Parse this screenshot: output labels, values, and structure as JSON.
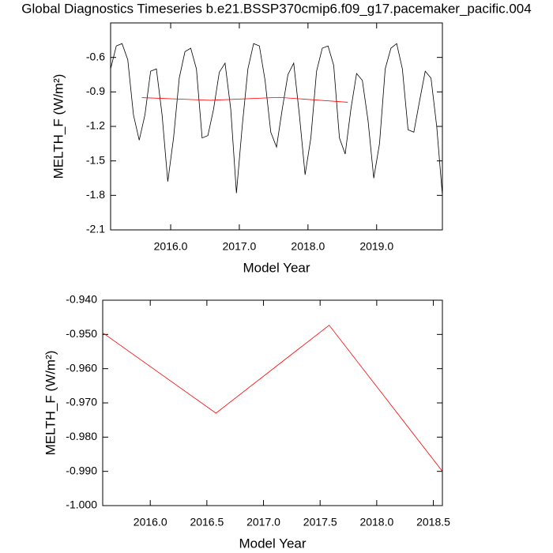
{
  "chart_data": [
    {
      "type": "line",
      "title": "Global Diagnostics Timeseries b.e21.BSSP370cmip6.f09_g17.pacemaker_pacific.004",
      "xlabel": "Model Year",
      "ylabel": "MELTH_F (W/m²)",
      "xlim": [
        2015.125,
        2019.958
      ],
      "ylim": [
        -2.1,
        -0.3
      ],
      "xticks": [
        {
          "value": 2016.0,
          "label": "2016.0"
        },
        {
          "value": 2017.0,
          "label": "2017.0"
        },
        {
          "value": 2018.0,
          "label": "2018.0"
        },
        {
          "value": 2019.0,
          "label": "2019.0"
        }
      ],
      "yticks": [
        -2.1,
        -1.8,
        -1.5,
        -1.2,
        -0.9,
        -0.6
      ],
      "series": [
        {
          "color": "#000000",
          "x": [
            2015.125,
            2015.208,
            2015.292,
            2015.375,
            2015.458,
            2015.542,
            2015.625,
            2015.708,
            2015.792,
            2015.875,
            2015.958,
            2016.042,
            2016.125,
            2016.208,
            2016.292,
            2016.375,
            2016.458,
            2016.542,
            2016.625,
            2016.708,
            2016.792,
            2016.875,
            2016.958,
            2017.042,
            2017.125,
            2017.208,
            2017.292,
            2017.375,
            2017.458,
            2017.542,
            2017.625,
            2017.708,
            2017.792,
            2017.875,
            2017.958,
            2018.042,
            2018.125,
            2018.208,
            2018.292,
            2018.375,
            2018.458,
            2018.542,
            2018.625,
            2018.708,
            2018.792,
            2018.875,
            2018.958,
            2019.042,
            2019.125,
            2019.208,
            2019.292,
            2019.375,
            2019.458,
            2019.542,
            2019.625,
            2019.708,
            2019.792,
            2019.875,
            2019.958
          ],
          "values": [
            -0.7,
            -0.5,
            -0.48,
            -0.62,
            -1.1,
            -1.32,
            -1.1,
            -0.72,
            -0.7,
            -1.1,
            -1.68,
            -1.3,
            -0.78,
            -0.55,
            -0.52,
            -0.7,
            -1.3,
            -1.28,
            -1.05,
            -0.73,
            -0.65,
            -1.05,
            -1.78,
            -1.2,
            -0.7,
            -0.48,
            -0.5,
            -0.8,
            -1.25,
            -1.38,
            -1.05,
            -0.75,
            -0.65,
            -1.1,
            -1.62,
            -1.3,
            -0.72,
            -0.52,
            -0.5,
            -0.67,
            -1.3,
            -1.44,
            -1.05,
            -0.74,
            -0.8,
            -1.15,
            -1.65,
            -1.35,
            -0.7,
            -0.52,
            -0.48,
            -0.7,
            -1.23,
            -1.25,
            -0.98,
            -0.72,
            -0.78,
            -1.2,
            -1.8
          ]
        },
        {
          "color": "#ff0000",
          "x": [
            2015.58,
            2016.58,
            2017.58,
            2018.58
          ],
          "values": [
            -0.9495,
            -0.973,
            -0.9473,
            -0.99
          ]
        }
      ]
    },
    {
      "type": "line",
      "xlabel": "Model Year",
      "ylabel": "MELTH_F (W/m²)",
      "xlim": [
        2015.58,
        2018.58
      ],
      "ylim": [
        -1.0,
        -0.94
      ],
      "xticks": [
        {
          "value": 2016.0,
          "label": "2016.0"
        },
        {
          "value": 2016.5,
          "label": "2016.5"
        },
        {
          "value": 2017.0,
          "label": "2017.0"
        },
        {
          "value": 2017.5,
          "label": "2017.5"
        },
        {
          "value": 2018.0,
          "label": "2018.0"
        },
        {
          "value": 2018.5,
          "label": "2018.5"
        }
      ],
      "yticks": [
        {
          "value": -1.0,
          "label": "-1.000"
        },
        {
          "value": -0.99,
          "label": "-0.990"
        },
        {
          "value": -0.98,
          "label": "-0.980"
        },
        {
          "value": -0.97,
          "label": "-0.970"
        },
        {
          "value": -0.96,
          "label": "-0.960"
        },
        {
          "value": -0.95,
          "label": "-0.950"
        },
        {
          "value": -0.94,
          "label": "-0.940"
        }
      ],
      "series": [
        {
          "color": "#ff0000",
          "x": [
            2015.58,
            2016.58,
            2017.58,
            2018.58
          ],
          "values": [
            -0.9495,
            -0.973,
            -0.9473,
            -0.99
          ]
        }
      ]
    }
  ]
}
